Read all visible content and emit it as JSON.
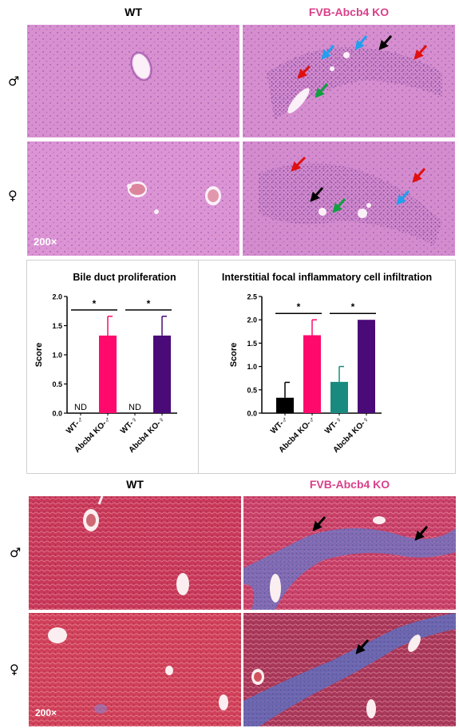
{
  "top": {
    "col_headers": [
      "WT",
      "FVB-Abcb4 KO"
    ],
    "row_labels": [
      "♂",
      "♀"
    ],
    "magnification": "200×"
  },
  "bottom": {
    "col_headers": [
      "WT",
      "FVB-Abcb4 KO"
    ],
    "row_labels": [
      "♂",
      "♀"
    ],
    "magnification": "200×"
  },
  "colors": {
    "he_tissue": "#d890d0",
    "masson_tissue": "#d0405a",
    "header_ko": "#d9408a",
    "arrow_red": "#e01010",
    "arrow_blue": "#20a0ee",
    "arrow_black": "#000000",
    "arrow_green": "#10a040"
  },
  "chart_data": [
    {
      "type": "bar",
      "title": "Bile duct proliferation",
      "ylabel": "Score",
      "xlabel": "",
      "ylim": [
        0,
        2.0
      ],
      "yticks": [
        "0.0",
        "0.5",
        "1.0",
        "1.5",
        "2.0"
      ],
      "categories": [
        "WT-♂",
        "Abcb4 KO-♂",
        "WT-♀",
        "Abcb4 KO-♀"
      ],
      "values": [
        0,
        1.33,
        0,
        1.33
      ],
      "errors": [
        0,
        0.33,
        0,
        0.33
      ],
      "colors": [
        "#000000",
        "#ff0a6c",
        "#1a8a80",
        "#4a0a78"
      ],
      "value_labels": [
        "ND",
        "",
        "ND",
        ""
      ],
      "significance": [
        {
          "from": 0,
          "to": 1,
          "label": "*"
        },
        {
          "from": 2,
          "to": 3,
          "label": "*"
        }
      ]
    },
    {
      "type": "bar",
      "title": "Interstitial focal inflammatory cell infiltration",
      "ylabel": "Score",
      "xlabel": "",
      "ylim": [
        0,
        2.5
      ],
      "yticks": [
        "0.0",
        "0.5",
        "1.0",
        "1.5",
        "2.0",
        "2.5"
      ],
      "categories": [
        "WT-♂",
        "Abcb4 KO-♂",
        "WT-♀",
        "Abcb4 KO-♀"
      ],
      "values": [
        0.33,
        1.67,
        0.67,
        2.0
      ],
      "errors": [
        0.33,
        0.33,
        0.33,
        0
      ],
      "colors": [
        "#000000",
        "#ff0a6c",
        "#1a8a80",
        "#4a0a78"
      ],
      "value_labels": [
        "",
        "",
        "",
        ""
      ],
      "significance": [
        {
          "from": 0,
          "to": 1,
          "label": "*"
        },
        {
          "from": 2,
          "to": 3,
          "label": "*"
        }
      ]
    }
  ]
}
